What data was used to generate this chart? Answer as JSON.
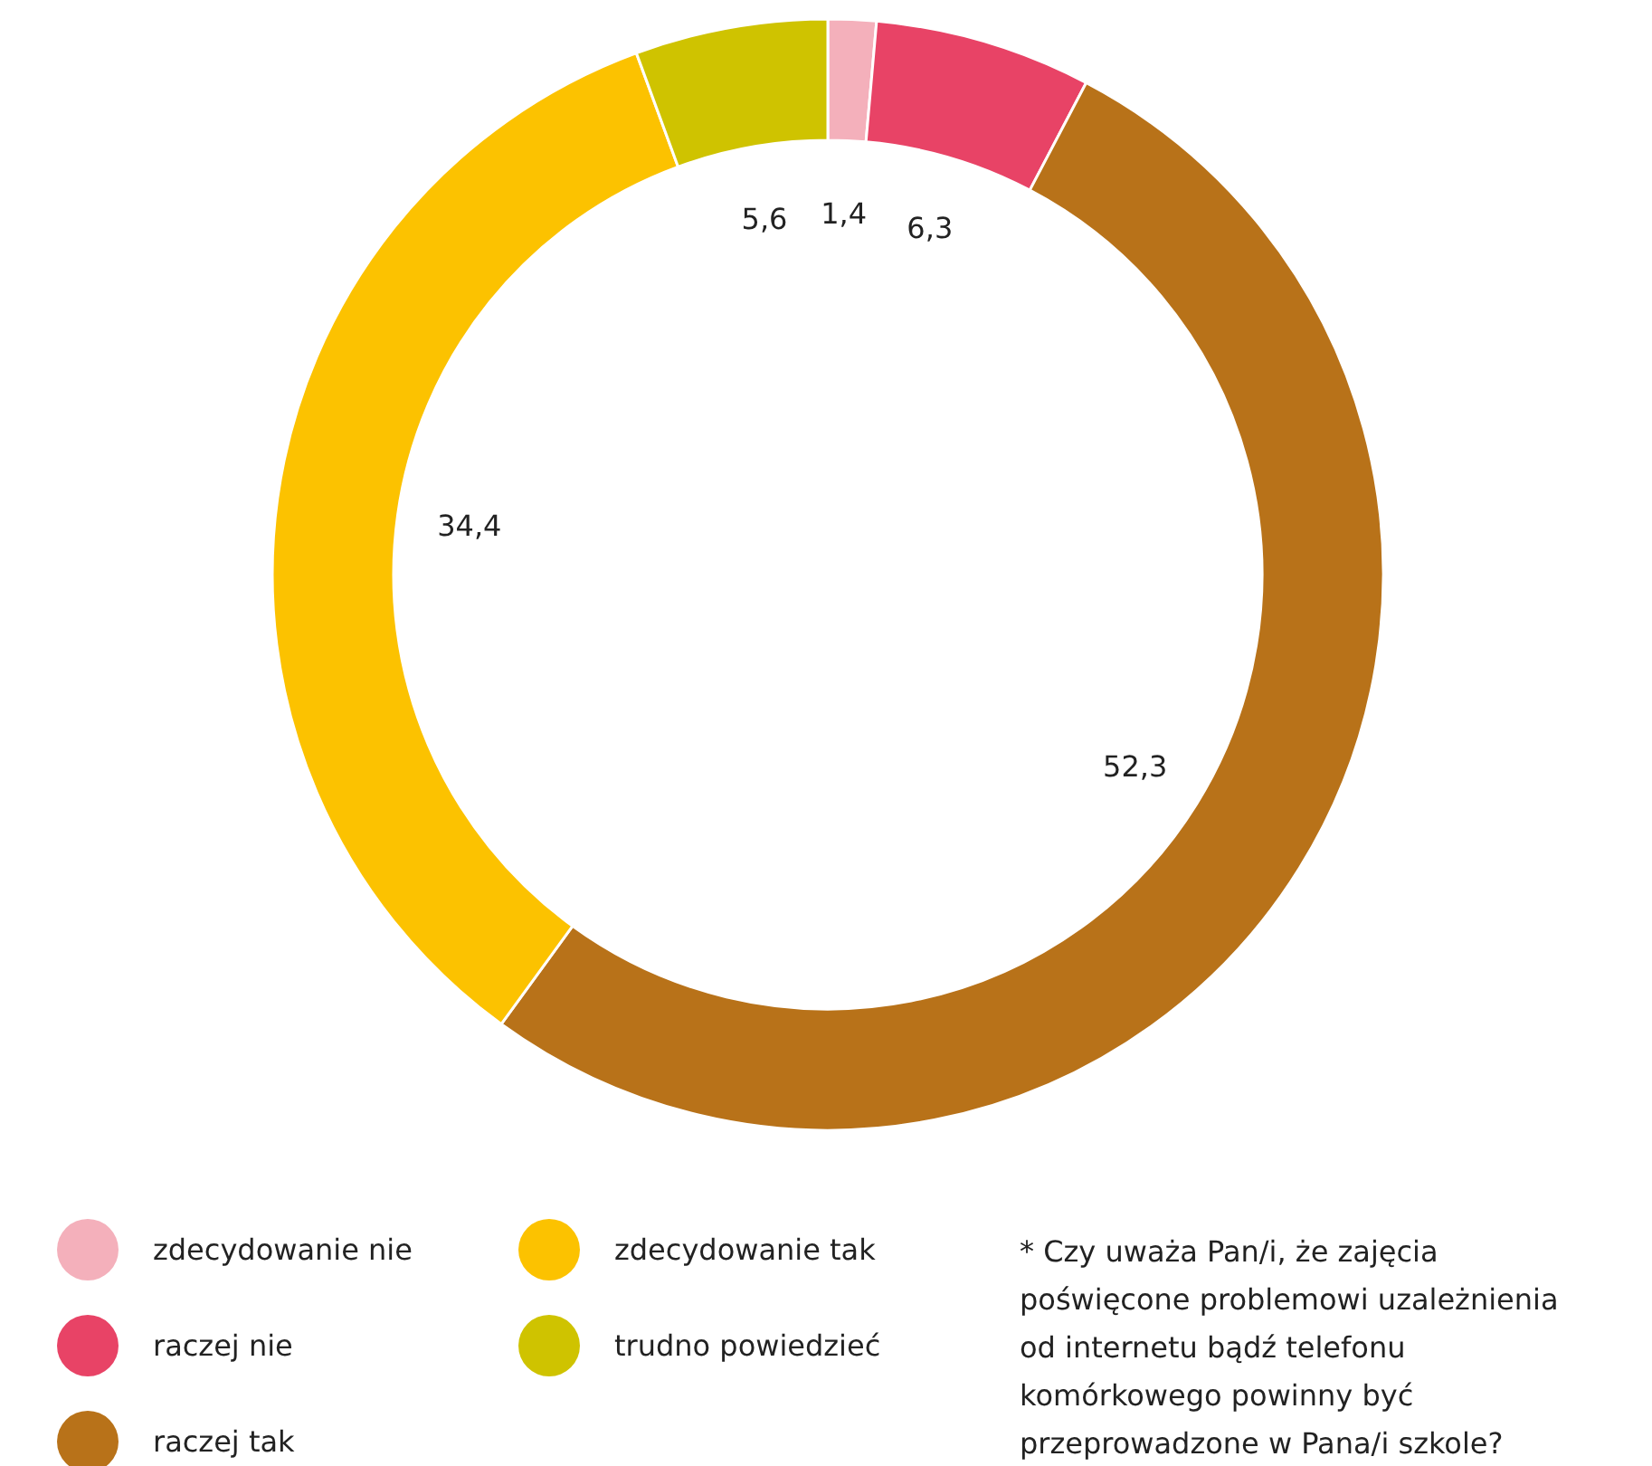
{
  "chart_data": {
    "type": "donut",
    "categories": [
      "zdecydowanie nie",
      "raczej nie",
      "raczej tak",
      "zdecydowanie tak",
      "trudno powiedzieć"
    ],
    "values": [
      1.4,
      6.3,
      52.3,
      34.4,
      5.6
    ],
    "colors": [
      "#f4b0bb",
      "#e84366",
      "#b87219",
      "#fcc200",
      "#cfc300"
    ],
    "value_labels": [
      "1,4",
      "6,3",
      "52,3",
      "34,4",
      "5,6"
    ],
    "legend": "bottom",
    "annotations": [
      "* Czy uważa Pan/i, że zajęcia poświęcone problemowi uzależnienia od internetu bądź telefonu komórkowego powinny być przeprowadzone w Pana/i szkole?"
    ]
  }
}
